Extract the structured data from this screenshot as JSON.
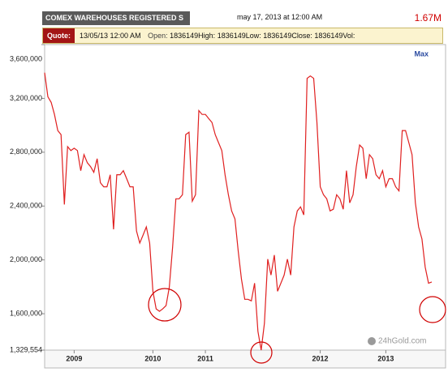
{
  "header": {
    "title": "COMEX WAREHOUSES REGISTERED S",
    "date": "may 17, 2013 at 12:00 AM",
    "last": "1.67M"
  },
  "quote": {
    "label": "Quote:",
    "time": "13/05/13 12:00 AM",
    "open_label": "Open:",
    "open": "1836149",
    "high_label": "High:",
    "high": "1836149",
    "low_label": "Low:",
    "low": "1836149",
    "close_label": "Close:",
    "close": "1836149",
    "vol_label": "Vol:"
  },
  "max_button": "Max",
  "watermark": "24hGold.com",
  "chart_data": {
    "type": "line",
    "color": "#e02020",
    "xlim": [
      0,
      118
    ],
    "xticks": [
      {
        "value": 9,
        "label": "2009"
      },
      {
        "value": 33,
        "label": "2010"
      },
      {
        "value": 49,
        "label": "2011"
      },
      {
        "value": 84,
        "label": "2012"
      },
      {
        "value": 104,
        "label": "2013"
      }
    ],
    "ylim": [
      1329554,
      3600000
    ],
    "yticks": [
      {
        "value": 1329554,
        "label": "1,329,554"
      },
      {
        "value": 1600000,
        "label": "1,600,000"
      },
      {
        "value": 2000000,
        "label": "2,000,000"
      },
      {
        "value": 2400000,
        "label": "2,400,000"
      },
      {
        "value": 2800000,
        "label": "2,800,000"
      },
      {
        "value": 3200000,
        "label": "3,200,000"
      },
      {
        "value": 3600000,
        "label": "3,600,000"
      }
    ],
    "grid": false,
    "values": [
      3391000,
      3212000,
      3170000,
      3081000,
      2961000,
      2931000,
      2412000,
      2842000,
      2812000,
      2830000,
      2812000,
      2663000,
      2782000,
      2722000,
      2693000,
      2651000,
      2752000,
      2573000,
      2543000,
      2543000,
      2633000,
      2227000,
      2633000,
      2633000,
      2663000,
      2603000,
      2543000,
      2543000,
      2215000,
      2125000,
      2185000,
      2245000,
      2125000,
      1767000,
      1636000,
      1618000,
      1636000,
      1660000,
      1797000,
      2096000,
      2454000,
      2454000,
      2484000,
      2931000,
      2949000,
      2436000,
      2484000,
      3110000,
      3081000,
      3081000,
      3051000,
      3021000,
      2931000,
      2872000,
      2812000,
      2633000,
      2484000,
      2364000,
      2304000,
      2066000,
      1857000,
      1707000,
      1707000,
      1696000,
      1827000,
      1469000,
      1329554,
      1528000,
      2006000,
      1887000,
      2036000,
      1767000,
      1827000,
      1887000,
      2006000,
      1887000,
      2245000,
      2364000,
      2394000,
      2334000,
      3349000,
      3367000,
      3349000,
      3021000,
      2543000,
      2484000,
      2454000,
      2364000,
      2376000,
      2484000,
      2454000,
      2376000,
      2663000,
      2424000,
      2484000,
      2693000,
      2854000,
      2830000,
      2603000,
      2782000,
      2752000,
      2633000,
      2603000,
      2663000,
      2543000,
      2603000,
      2603000,
      2543000,
      2513000,
      2961000,
      2961000,
      2872000,
      2782000,
      2424000,
      2245000,
      2155000,
      1946000,
      1827000,
      1836149
    ]
  }
}
